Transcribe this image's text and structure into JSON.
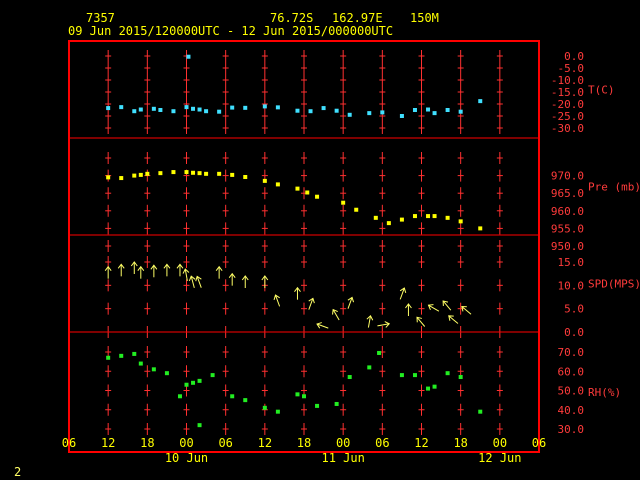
{
  "header": {
    "station_id": "7357",
    "lat": "76.72S",
    "lon": "162.97E",
    "elev": "150M",
    "period": "09 Jun 2015/120000UTC - 12 Jun 2015/000000UTC"
  },
  "footer": {
    "page_number": "2"
  },
  "colors": {
    "frame": "#ff0000",
    "text_red": "#ff3b3b",
    "header": "#ffff00",
    "temp": "#40e0ff",
    "pres": "#ffff00",
    "wind": "#ffff66",
    "rh": "#22ee22"
  },
  "chart_data": {
    "type": "scatter",
    "x_unit": "hours since 09 Jun 2015 06 UTC",
    "xlim": [
      0,
      72
    ],
    "x_ticks": [
      {
        "x": 0,
        "label": "06"
      },
      {
        "x": 6,
        "label": "12"
      },
      {
        "x": 12,
        "label": "18"
      },
      {
        "x": 18,
        "label": "00"
      },
      {
        "x": 24,
        "label": "06"
      },
      {
        "x": 30,
        "label": "12"
      },
      {
        "x": 36,
        "label": "18"
      },
      {
        "x": 42,
        "label": "00"
      },
      {
        "x": 48,
        "label": "06"
      },
      {
        "x": 54,
        "label": "12"
      },
      {
        "x": 60,
        "label": "18"
      },
      {
        "x": 66,
        "label": "00"
      },
      {
        "x": 72,
        "label": "06"
      }
    ],
    "day_labels": [
      {
        "x": 18,
        "label": "10 Jun"
      },
      {
        "x": 42,
        "label": "11 Jun"
      },
      {
        "x": 66,
        "label": "12 Jun"
      }
    ],
    "panels": [
      {
        "key": "temp",
        "title": "T(C)",
        "ylim": [
          -30,
          0
        ],
        "y_ticks": [
          0,
          -5,
          -10,
          -15,
          -20,
          -25,
          -30
        ],
        "tick_labels": [
          "0.0",
          "-5.0",
          "-10.0",
          "-15.0",
          "-20.0",
          "-25.0",
          "-30.0"
        ],
        "points": [
          [
            6,
            -21.7
          ],
          [
            8,
            -21.3
          ],
          [
            10,
            -23.0
          ],
          [
            11,
            -22.3
          ],
          [
            13,
            -22.0
          ],
          [
            14,
            -22.5
          ],
          [
            16,
            -23.0
          ],
          [
            18,
            -21.3
          ],
          [
            18.3,
            -0.3
          ],
          [
            19,
            -22.0
          ],
          [
            20,
            -22.3
          ],
          [
            21,
            -23.0
          ],
          [
            23,
            -23.2
          ],
          [
            25,
            -21.5
          ],
          [
            27,
            -21.6
          ],
          [
            30,
            -21.0
          ],
          [
            32,
            -21.4
          ],
          [
            35,
            -22.8
          ],
          [
            37,
            -23.0
          ],
          [
            39,
            -21.7
          ],
          [
            41,
            -22.8
          ],
          [
            43,
            -24.5
          ],
          [
            46,
            -23.8
          ],
          [
            48,
            -23.5
          ],
          [
            51,
            -25.0
          ],
          [
            53,
            -22.5
          ],
          [
            55,
            -22.3
          ],
          [
            56,
            -23.8
          ],
          [
            58,
            -22.5
          ],
          [
            60,
            -23.2
          ],
          [
            63,
            -18.8
          ]
        ]
      },
      {
        "key": "pres",
        "title": "Pre (mb)",
        "ylim": [
          950,
          975
        ],
        "y_ticks": [
          975,
          970,
          965,
          960,
          955,
          950
        ],
        "tick_labels": [
          "",
          "970.0",
          "965.0",
          "960.0",
          "955.0",
          "950.0"
        ],
        "points": [
          [
            6,
            969.5
          ],
          [
            8,
            969.3
          ],
          [
            10,
            970.0
          ],
          [
            11,
            970.2
          ],
          [
            12,
            970.5
          ],
          [
            14,
            970.7
          ],
          [
            16,
            971.0
          ],
          [
            18,
            971.0
          ],
          [
            19,
            970.8
          ],
          [
            20,
            970.7
          ],
          [
            21,
            970.5
          ],
          [
            23,
            970.5
          ],
          [
            25,
            970.2
          ],
          [
            27,
            969.6
          ],
          [
            30,
            968.5
          ],
          [
            32,
            967.5
          ],
          [
            35,
            966.3
          ],
          [
            36.5,
            965.2
          ],
          [
            38,
            964.0
          ],
          [
            42,
            962.3
          ],
          [
            44,
            960.3
          ],
          [
            47,
            958.0
          ],
          [
            49,
            956.5
          ],
          [
            51,
            957.5
          ],
          [
            53,
            958.5
          ],
          [
            55,
            958.5
          ],
          [
            56,
            958.5
          ],
          [
            58,
            958.0
          ],
          [
            60,
            957.0
          ],
          [
            63,
            955.0
          ]
        ]
      },
      {
        "key": "wind",
        "title": "SPD(MPS)",
        "ylim": [
          0,
          15
        ],
        "y_ticks": [
          15,
          10,
          5,
          0
        ],
        "tick_labels": [
          "15.0",
          "10.0",
          "5.0",
          "0.0"
        ],
        "points": [
          [
            6,
            12.5,
            0
          ],
          [
            8,
            13.0,
            0
          ],
          [
            10,
            13.5,
            0
          ],
          [
            11,
            12.5,
            0
          ],
          [
            13,
            12.8,
            0
          ],
          [
            15,
            13.0,
            0
          ],
          [
            17,
            13.0,
            0
          ],
          [
            18,
            12.0,
            -10
          ],
          [
            19,
            10.5,
            -15
          ],
          [
            20,
            10.5,
            -20
          ],
          [
            23,
            12.5,
            0
          ],
          [
            25,
            11.0,
            0
          ],
          [
            27,
            10.5,
            0
          ],
          [
            30,
            10.5,
            0
          ],
          [
            32,
            6.5,
            -20
          ],
          [
            35,
            8.0,
            0
          ],
          [
            37,
            5.8,
            20
          ],
          [
            39,
            1.2,
            -70
          ],
          [
            41,
            3.5,
            -30
          ],
          [
            43,
            6.0,
            20
          ],
          [
            46,
            2.0,
            10
          ],
          [
            48,
            1.5,
            80
          ],
          [
            51,
            8.0,
            20
          ],
          [
            52,
            4.5,
            0
          ],
          [
            54,
            2.0,
            -40
          ],
          [
            56,
            5.0,
            -60
          ],
          [
            58,
            5.5,
            -40
          ],
          [
            59,
            2.5,
            -50
          ],
          [
            61,
            4.5,
            -50
          ]
        ]
      },
      {
        "key": "rh",
        "title": "RH(%)",
        "ylim": [
          30,
          70
        ],
        "y_ticks": [
          70,
          60,
          50,
          40,
          30
        ],
        "tick_labels": [
          "70.0",
          "60.0",
          "50.0",
          "40.0",
          "30.0"
        ],
        "points": [
          [
            6,
            67.0
          ],
          [
            8,
            68.0
          ],
          [
            10,
            69.0
          ],
          [
            11,
            64.0
          ],
          [
            13,
            61.0
          ],
          [
            15,
            59.0
          ],
          [
            17,
            47.0
          ],
          [
            18,
            53.0
          ],
          [
            19,
            54.0
          ],
          [
            20,
            55.0
          ],
          [
            22,
            58.0
          ],
          [
            25,
            47.0
          ],
          [
            27,
            45.0
          ],
          [
            30,
            41.0
          ],
          [
            32,
            39.0
          ],
          [
            35,
            48.0
          ],
          [
            36,
            47.0
          ],
          [
            38,
            42.0
          ],
          [
            41,
            43.0
          ],
          [
            43,
            57.0
          ],
          [
            46,
            62.0
          ],
          [
            47.5,
            69.5
          ],
          [
            51,
            58.0
          ],
          [
            53,
            58.0
          ],
          [
            55,
            51.0
          ],
          [
            56,
            52.0
          ],
          [
            58,
            59.0
          ],
          [
            60,
            57.0
          ],
          [
            63,
            39.0
          ],
          [
            20,
            32.0
          ]
        ]
      }
    ]
  }
}
